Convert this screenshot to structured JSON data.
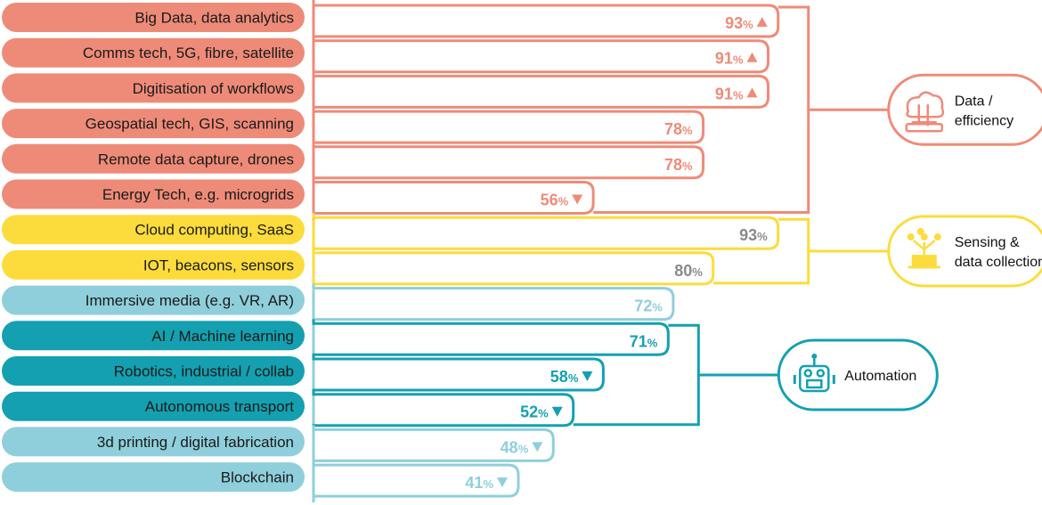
{
  "colors": {
    "salmon": "#ee8b78",
    "yellow": "#fbdc3c",
    "teal_light": "#8fcfdb",
    "teal_dark": "#14a0b0",
    "grey_value": "#8a8a8a"
  },
  "chart_data": {
    "type": "bar",
    "orientation": "horizontal",
    "value_suffix": "%",
    "categories": [
      "Big Data, data analytics",
      "Comms tech, 5G, fibre, satellite",
      "Digitisation of workflows",
      "Geospatial tech, GIS, scanning",
      "Remote data capture, drones",
      "Energy Tech, e.g. microgrids",
      "Cloud computing, SaaS",
      "IOT, beacons, sensors",
      "Immersive media (e.g. VR, AR)",
      "AI / Machine learning",
      "Robotics, industrial  / collab",
      "Autonomous transport",
      "3d printing / digital fabrication",
      "Blockchain"
    ],
    "values": [
      93,
      91,
      91,
      78,
      78,
      56,
      93,
      80,
      72,
      71,
      58,
      52,
      48,
      41
    ],
    "trend": [
      "up",
      "up",
      "up",
      "",
      "",
      "down",
      "",
      "",
      "",
      "",
      "down",
      "down",
      "down",
      "down"
    ],
    "color_key": [
      "salmon",
      "salmon",
      "salmon",
      "salmon",
      "salmon",
      "salmon",
      "yellow",
      "yellow",
      "teal_light",
      "teal_dark",
      "teal_dark",
      "teal_dark",
      "teal_light",
      "teal_light"
    ],
    "value_color_key": [
      "salmon",
      "salmon",
      "salmon",
      "salmon",
      "salmon",
      "salmon",
      "grey_value",
      "grey_value",
      "teal_light",
      "teal_dark",
      "teal_dark",
      "teal_dark",
      "teal_light",
      "teal_light"
    ],
    "xlim": [
      0,
      100
    ],
    "groups": [
      {
        "label_lines": [
          "Data /",
          "efficiency"
        ],
        "icon": "cloud-circuit-icon",
        "color_key": "salmon",
        "first_item": 0,
        "last_item": 5
      },
      {
        "label_lines": [
          "Sensing &",
          "data collections"
        ],
        "icon": "sensor-network-icon",
        "color_key": "yellow",
        "first_item": 6,
        "last_item": 7
      },
      {
        "label_lines": [
          "Automation"
        ],
        "icon": "robot-icon",
        "color_key": "teal_dark",
        "first_item": 9,
        "last_item": 11
      }
    ]
  }
}
